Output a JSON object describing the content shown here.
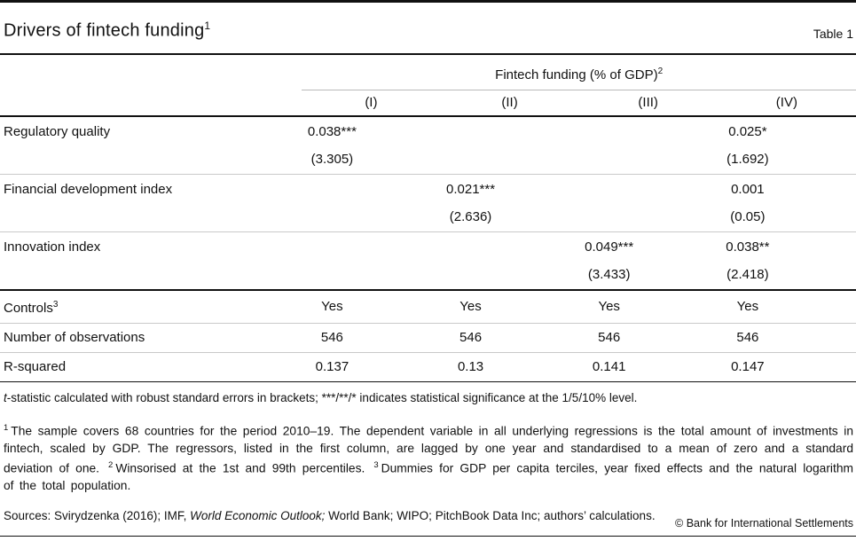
{
  "header": {
    "title": "Drivers of fintech funding",
    "title_sup": "1",
    "table_label": "Table 1"
  },
  "table": {
    "span_header": "Fintech funding (% of GDP)",
    "span_header_sup": "2",
    "columns": [
      "(I)",
      "(II)",
      "(III)",
      "(IV)"
    ],
    "coef_rows": [
      {
        "label": "Regulatory quality",
        "values": [
          "0.038***",
          "",
          "",
          "0.025*"
        ],
        "tstats": [
          "(3.305)",
          "",
          "",
          "(1.692)"
        ]
      },
      {
        "label": "Financial development index",
        "values": [
          "",
          "0.021***",
          "",
          "0.001"
        ],
        "tstats": [
          "",
          "(2.636)",
          "",
          "(0.05)"
        ]
      },
      {
        "label": "Innovation index",
        "values": [
          "",
          "",
          "0.049***",
          "0.038**"
        ],
        "tstats": [
          "",
          "",
          "(3.433)",
          "(2.418)"
        ]
      }
    ],
    "stat_rows": [
      {
        "label": "Controls",
        "sup": "3",
        "values": [
          "Yes",
          "Yes",
          "Yes",
          "Yes"
        ]
      },
      {
        "label": "Number of observations",
        "sup": "",
        "values": [
          "546",
          "546",
          "546",
          "546"
        ]
      },
      {
        "label": "R-squared",
        "sup": "",
        "values": [
          "0.137",
          "0.13",
          "0.141",
          "0.147"
        ]
      }
    ]
  },
  "notes": {
    "tstat_note_italic": "t",
    "tstat_note_rest": "-statistic calculated with robust standard errors in brackets; ***/**/* indicates statistical significance at the 1/5/10% level.",
    "footnote1_sup": "1",
    "footnote1_text": "The sample covers 68 countries for the period 2010–19. The dependent variable in all underlying regressions is the total amount of investments in fintech, scaled by GDP. The regressors, listed in the first column, are lagged by one year and standardised to a mean of zero and a standard deviation of one.",
    "footnote2_sup": "2",
    "footnote2_text": "Winsorised at the 1st and 99th percentiles.",
    "footnote3_sup": "3",
    "footnote3_text": "Dummies for GDP per capita terciles, year fixed effects and the natural logarithm of the total population.",
    "sources_prefix": "Sources: Svirydzenka (2016); IMF, ",
    "sources_italic": "World Economic Outlook;",
    "sources_suffix": " World Bank; WIPO; PitchBook Data Inc; authors’ calculations."
  },
  "footer": {
    "copyright": "© Bank for International Settlements"
  },
  "colors": {
    "text": "#111111",
    "rule_dark": "#111111",
    "rule_light": "#c9c9c9"
  }
}
